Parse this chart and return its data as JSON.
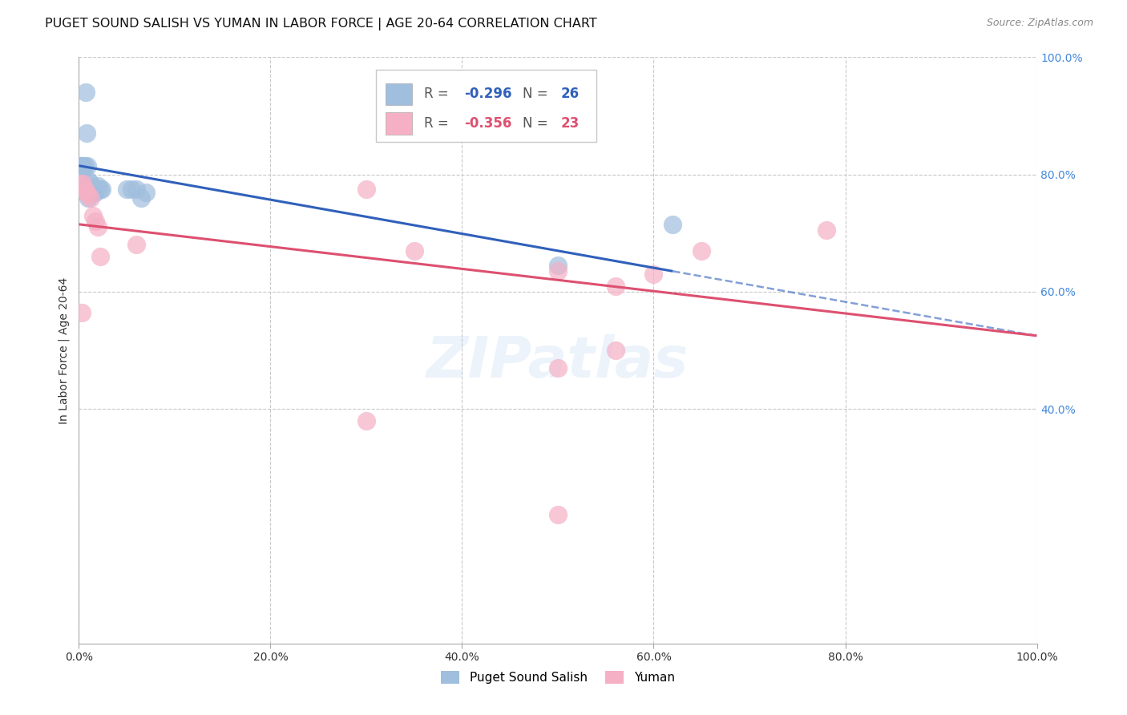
{
  "title": "PUGET SOUND SALISH VS YUMAN IN LABOR FORCE | AGE 20-64 CORRELATION CHART",
  "source": "Source: ZipAtlas.com",
  "ylabel": "In Labor Force | Age 20-64",
  "xlim": [
    0.0,
    1.0
  ],
  "ylim": [
    0.0,
    1.0
  ],
  "xtick_vals": [
    0.0,
    0.2,
    0.4,
    0.6,
    0.8,
    1.0
  ],
  "xtick_labels": [
    "0.0%",
    "20.0%",
    "40.0%",
    "60.0%",
    "80.0%",
    "100.0%"
  ],
  "ytick_vals_right": [
    1.0,
    0.8,
    0.6,
    0.4
  ],
  "ytick_labels_right": [
    "100.0%",
    "80.0%",
    "60.0%",
    "40.0%"
  ],
  "blue_color": "#a0bede",
  "pink_color": "#f5b0c5",
  "blue_line_color": "#3060bb",
  "pink_line_color": "#dd5070",
  "blue_R": "-0.296",
  "blue_N": "26",
  "pink_R": "-0.356",
  "pink_N": "23",
  "grid_color": "#c8c8c8",
  "right_axis_color": "#4488dd",
  "watermark": "ZIPatlas",
  "background_color": "#ffffff",
  "blue_line_x0": 0.0,
  "blue_line_y0": 0.815,
  "blue_line_x1": 0.62,
  "blue_line_y1": 0.635,
  "blue_line_solid_end": 0.62,
  "blue_line_dashed_end": 1.0,
  "blue_line_dashed_y_end": 0.523,
  "pink_line_x0": 0.0,
  "pink_line_y0": 0.715,
  "pink_line_x1": 1.0,
  "pink_line_y1": 0.525,
  "pink_line_solid_end": 0.62,
  "puget_x": [
    0.002,
    0.002,
    0.003,
    0.004,
    0.005,
    0.006,
    0.007,
    0.008,
    0.009,
    0.01,
    0.01,
    0.012,
    0.013,
    0.014,
    0.015,
    0.017,
    0.02,
    0.022,
    0.024,
    0.05,
    0.055,
    0.06,
    0.065,
    0.07,
    0.5,
    0.62
  ],
  "puget_y": [
    0.815,
    0.815,
    0.815,
    0.815,
    0.815,
    0.815,
    0.94,
    0.87,
    0.815,
    0.79,
    0.76,
    0.785,
    0.775,
    0.77,
    0.77,
    0.77,
    0.78,
    0.775,
    0.775,
    0.775,
    0.775,
    0.775,
    0.76,
    0.77,
    0.645,
    0.715
  ],
  "yuman_x": [
    0.002,
    0.004,
    0.006,
    0.008,
    0.01,
    0.012,
    0.015,
    0.017,
    0.02,
    0.022,
    0.06,
    0.3,
    0.35,
    0.5,
    0.56,
    0.6,
    0.65,
    0.78,
    0.003,
    0.3,
    0.56,
    0.5,
    0.5
  ],
  "yuman_y": [
    0.785,
    0.785,
    0.775,
    0.77,
    0.765,
    0.76,
    0.73,
    0.72,
    0.71,
    0.66,
    0.68,
    0.775,
    0.67,
    0.635,
    0.61,
    0.63,
    0.67,
    0.705,
    0.565,
    0.38,
    0.5,
    0.47,
    0.22
  ]
}
